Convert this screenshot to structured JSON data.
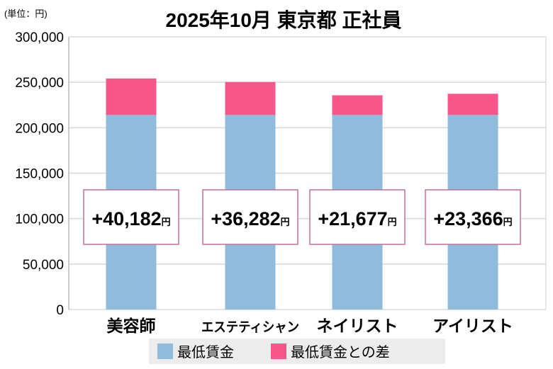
{
  "chart_data": {
    "type": "bar",
    "stacked": true,
    "title": "2025年10月 東京都 正社員",
    "unit_label": "(単位：円)",
    "categories": [
      "美容師",
      "エステティシャン",
      "ネイリスト",
      "アイリスト"
    ],
    "series": [
      {
        "name": "最低賃金",
        "values": [
          214000,
          214000,
          214000,
          214000
        ],
        "color": "#8fbcdc"
      },
      {
        "name": "最低賃金との差",
        "values": [
          40182,
          36282,
          21677,
          23366
        ],
        "color": "#f7568a"
      }
    ],
    "data_labels": [
      "+40,182",
      "+36,282",
      "+21,677",
      "+23,366"
    ],
    "data_label_unit": "円",
    "ylim": [
      0,
      300000
    ],
    "yticks": [
      "0",
      "50,000",
      "100,000",
      "150,000",
      "200,000",
      "250,000",
      "300,000"
    ],
    "grid": true,
    "legend": "bottom"
  }
}
